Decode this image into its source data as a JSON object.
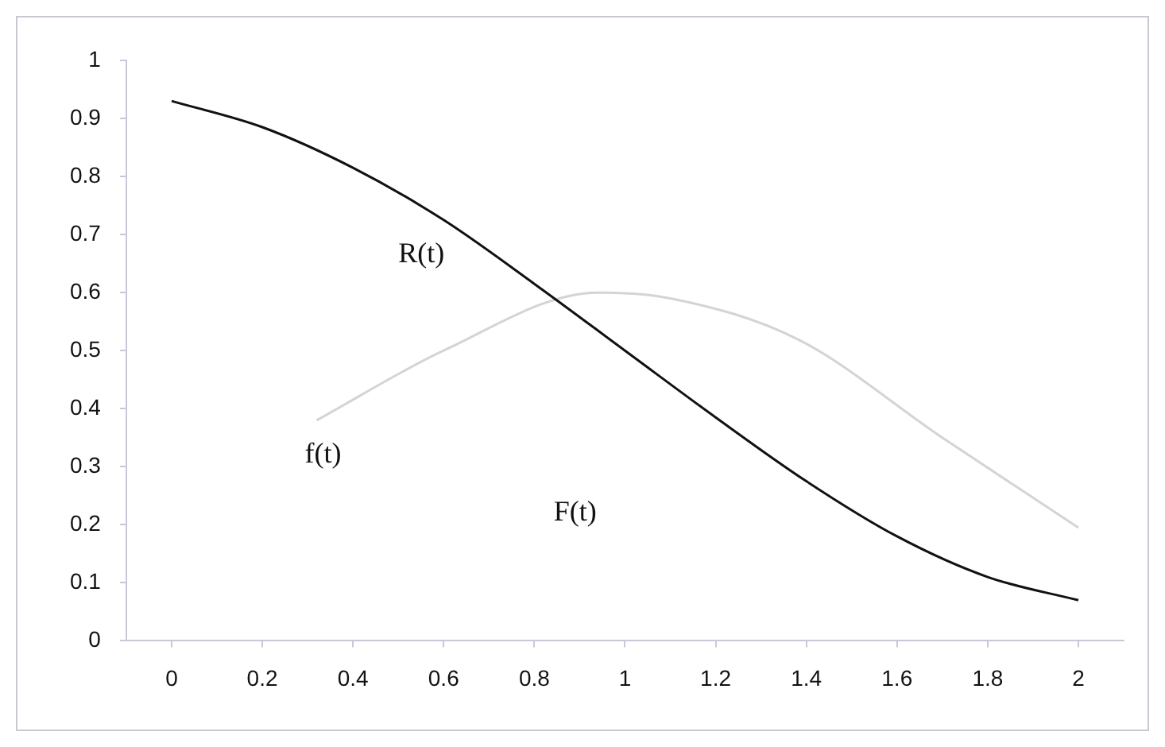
{
  "chart_data": {
    "type": "line",
    "xlim": [
      -0.1,
      2.1
    ],
    "xticks": [
      0,
      0.2,
      0.4,
      0.6,
      0.8,
      1,
      1.2,
      1.4,
      1.6,
      1.8,
      2
    ],
    "ylim": [
      0,
      1
    ],
    "yticks": [
      0,
      0.1,
      0.2,
      0.3,
      0.4,
      0.5,
      0.6,
      0.7,
      0.8,
      0.9,
      1
    ],
    "grid": false,
    "legend": false,
    "marker": "none",
    "series": [
      {
        "name": "R(t)",
        "color": "#111111",
        "x": [
          0,
          0.2,
          0.4,
          0.6,
          0.8,
          1,
          1.2,
          1.4,
          1.6,
          1.8,
          2
        ],
        "values": [
          0.93,
          0.885,
          0.815,
          0.725,
          0.615,
          0.5,
          0.385,
          0.275,
          0.18,
          0.11,
          0.07
        ]
      },
      {
        "name": "f(t)",
        "color": "#d4d4d4",
        "x": [
          0.32,
          0.6,
          0.94,
          1.1,
          1.38,
          1.7,
          2
        ],
        "values": [
          0.38,
          0.5,
          0.6,
          0.59,
          0.52,
          0.35,
          0.195
        ]
      }
    ],
    "annotations": [
      "F(t)"
    ]
  }
}
